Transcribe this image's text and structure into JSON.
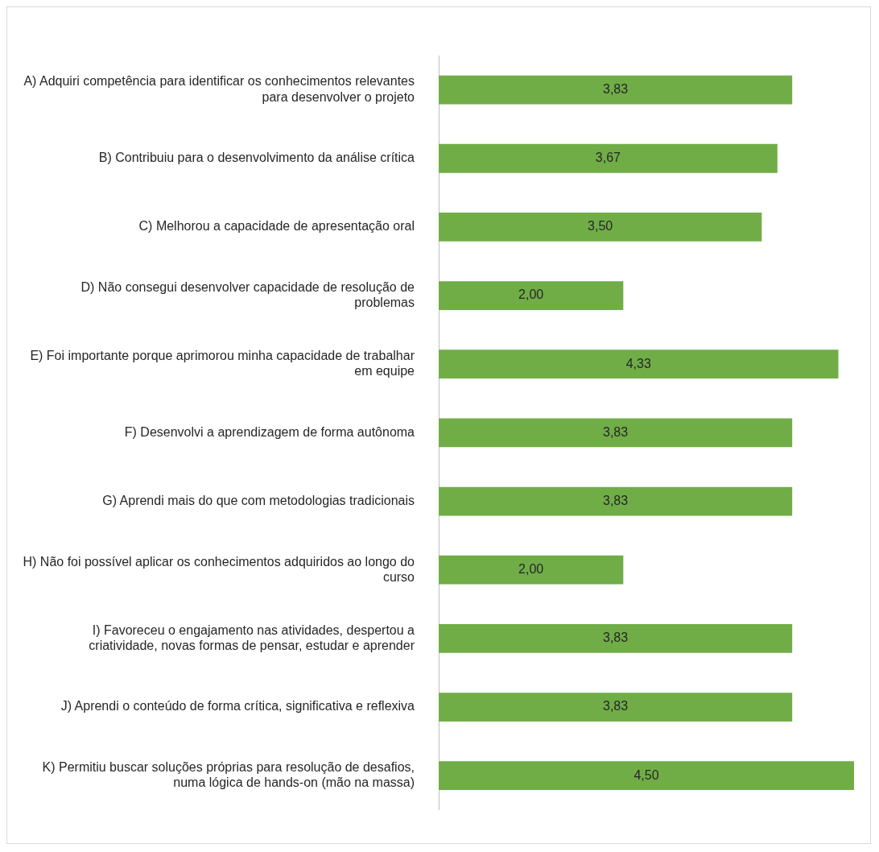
{
  "chart_data": {
    "type": "bar",
    "orientation": "horizontal",
    "color": "#70ad47",
    "categories": [
      "A) Adquiri competência para identificar os conhecimentos relevantes para desenvolver o projeto",
      "B) Contribuiu para o desenvolvimento da análise crítica",
      "C) Melhorou a capacidade de apresentação oral",
      "D) Não consegui desenvolver capacidade de resolução de problemas",
      "E) Foi importante porque aprimorou minha capacidade de trabalhar em equipe",
      "F) Desenvolvi a aprendizagem de forma autônoma",
      "G) Aprendi mais do que com metodologias tradicionais",
      "H) Não foi possível aplicar os conhecimentos adquiridos ao longo do curso",
      "I) Favoreceu o engajamento nas atividades, despertou a criatividade, novas formas de pensar, estudar e aprender",
      "J) Aprendi o conteúdo de forma crítica, significativa e reflexiva",
      "K) Permitiu buscar soluções próprias para resolução de desafios, numa lógica de hands-on (mão na massa)"
    ],
    "values": [
      3.83,
      3.67,
      3.5,
      2.0,
      4.33,
      3.83,
      3.83,
      2.0,
      3.83,
      3.83,
      4.5
    ],
    "value_labels": [
      "3,83",
      "3,67",
      "3,50",
      "2,00",
      "4,33",
      "3,83",
      "3,83",
      "2,00",
      "3,83",
      "3,83",
      "4,50"
    ]
  }
}
